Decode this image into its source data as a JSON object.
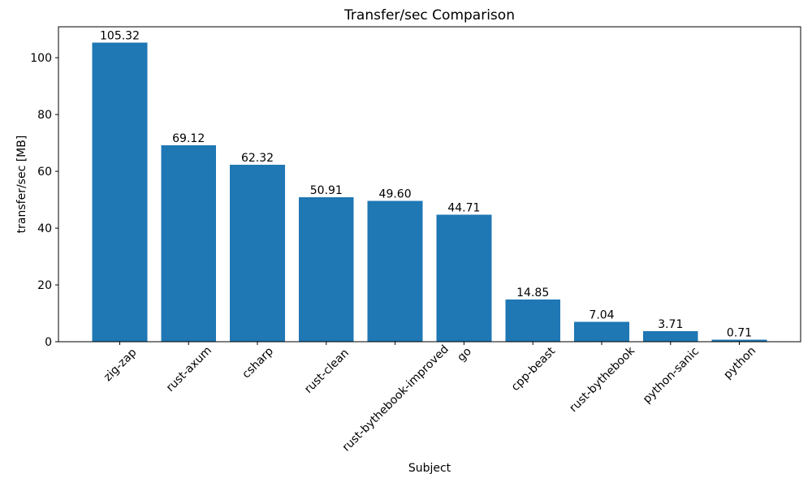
{
  "chart_data": {
    "type": "bar",
    "title": "Transfer/sec Comparison",
    "xlabel": "Subject",
    "ylabel": "transfer/sec [MB]",
    "categories": [
      "zig-zap",
      "rust-axum",
      "csharp",
      "rust-clean",
      "rust-bythebook-improved",
      "go",
      "cpp-beast",
      "rust-bythebook",
      "python-sanic",
      "python"
    ],
    "values": [
      105.32,
      69.12,
      62.32,
      50.91,
      49.6,
      44.71,
      14.85,
      7.04,
      3.71,
      0.71
    ],
    "value_labels": [
      "105.32",
      "69.12",
      "62.32",
      "50.91",
      "49.60",
      "44.71",
      "14.85",
      "7.04",
      "3.71",
      "0.71"
    ],
    "yticks": [
      0,
      20,
      40,
      60,
      80,
      100
    ],
    "ytick_labels": [
      "0",
      "20",
      "40",
      "60",
      "80",
      "100"
    ],
    "ylim": [
      0,
      110.9
    ],
    "bar_color": "#1f77b4",
    "axis_color": "#000000",
    "grid": false,
    "legend_position": "none",
    "xtick_rotation": 45
  }
}
